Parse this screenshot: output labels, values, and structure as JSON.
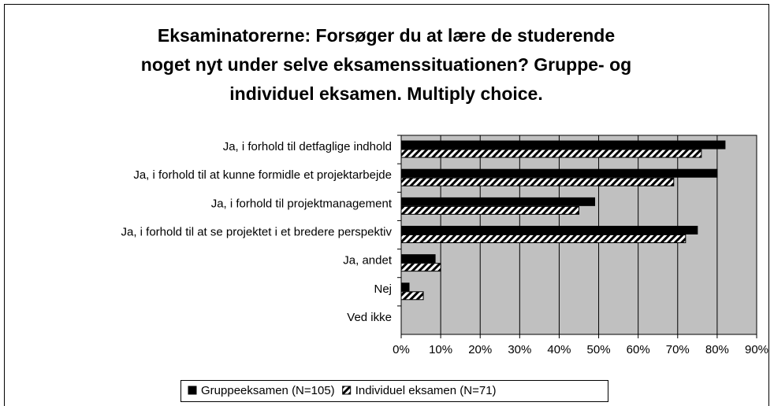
{
  "chart_data": {
    "type": "bar",
    "orientation": "horizontal",
    "title": [
      "Eksaminatorerne: Forsøger du at lære de studerende",
      "noget nyt under selve eksamenssituationen? Gruppe- og",
      "individuel eksamen. Multiply choice."
    ],
    "categories": [
      "Ja, i forhold til detfaglige indhold",
      "Ja, i forhold til at kunne formidle et projektarbejde",
      "Ja, i forhold til projektmanagement",
      "Ja, i forhold til at se projektet i et bredere perspektiv",
      "Ja, andet",
      "Nej",
      "Ved ikke"
    ],
    "series": [
      {
        "name": "Gruppeeksamen (N=105)",
        "color": "#000000",
        "fill": "solid",
        "values": [
          82,
          80,
          49,
          75,
          8.6,
          2,
          0
        ]
      },
      {
        "name": "Individuel eksamen (N=71)",
        "color": "#000000",
        "fill": "hatch",
        "values": [
          76,
          69,
          45,
          72,
          10,
          5.6,
          0
        ]
      }
    ],
    "xlim": [
      0,
      90
    ],
    "xticks": [
      {
        "value": 0,
        "label": "0%"
      },
      {
        "value": 10,
        "label": "10%"
      },
      {
        "value": 20,
        "label": "20%"
      },
      {
        "value": 30,
        "label": "30%"
      },
      {
        "value": 40,
        "label": "40%"
      },
      {
        "value": 50,
        "label": "50%"
      },
      {
        "value": 60,
        "label": "60%"
      },
      {
        "value": 70,
        "label": "70%"
      },
      {
        "value": 80,
        "label": "80%"
      },
      {
        "value": 90,
        "label": "90%"
      }
    ],
    "grid": true,
    "legend": "bottom",
    "background": "#c0c0c0"
  }
}
